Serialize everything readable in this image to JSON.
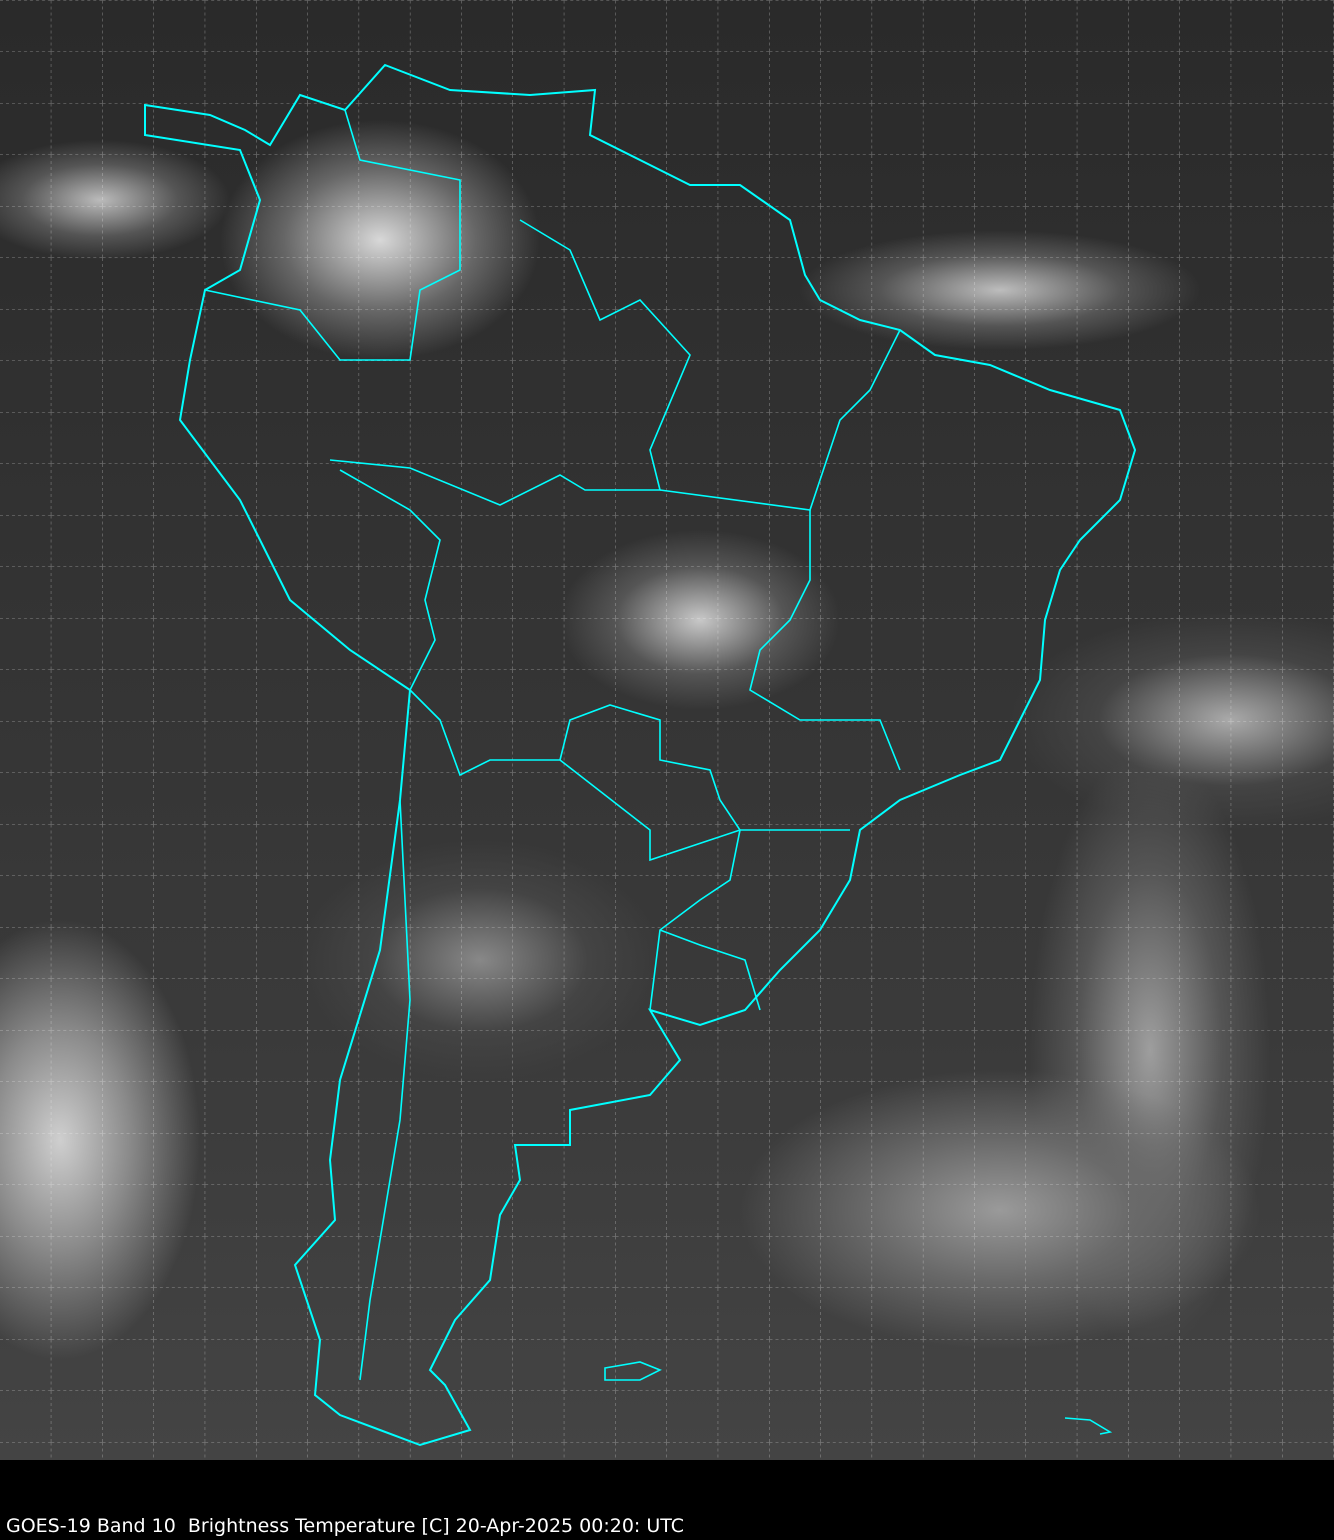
{
  "caption": "GOES-19 Band 10  Brightness Temperature [C] 20-Apr-2025 00:20: UTC",
  "map": {
    "imagery": "infrared satellite, grayscale",
    "region": "South America",
    "border_color": "#00ffff",
    "grid_color": "#ffffff",
    "grid": "dashed lat/lon graticule"
  }
}
